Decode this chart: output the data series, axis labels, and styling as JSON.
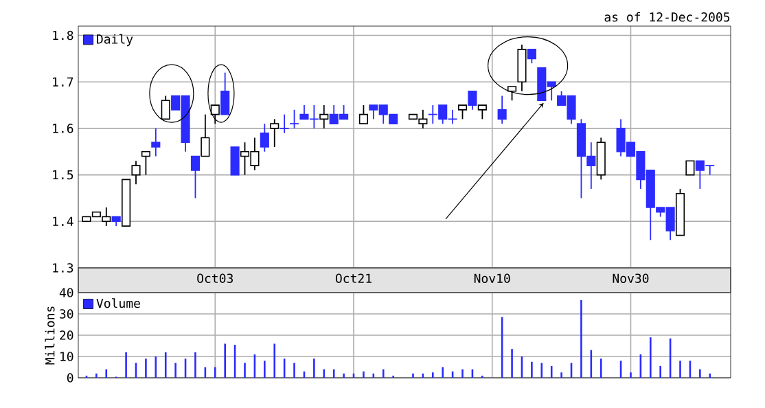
{
  "chart_data": [
    {
      "type": "candlestick",
      "subtitle": "as of 12-Dec-2005",
      "categories": [
        null,
        null,
        null,
        null,
        null,
        null,
        null,
        null,
        null,
        null,
        null,
        null,
        null,
        "Oct03",
        null,
        null,
        null,
        null,
        null,
        null,
        null,
        null,
        null,
        null,
        null,
        null,
        null,
        "Oct21",
        null,
        null,
        null,
        null,
        null,
        null,
        null,
        null,
        null,
        null,
        null,
        null,
        null,
        "Nov10",
        null,
        null,
        null,
        null,
        null,
        null,
        null,
        null,
        null,
        null,
        null,
        null,
        null,
        "Nov30",
        null,
        null,
        null,
        null,
        null,
        null,
        null,
        null
      ],
      "series": [
        {
          "name": "Daily",
          "color": "#2b2bff",
          "colors": [
            "#ffffff",
            "#ffffff",
            "#ffffff",
            "#2b2bff",
            "#ffffff",
            "#ffffff",
            "#ffffff",
            "#2b2bff",
            "#ffffff",
            "#2b2bff",
            "#2b2bff",
            "#2b2bff",
            "#ffffff",
            "#ffffff",
            "#2b2bff",
            "#2b2bff",
            "#ffffff",
            "#ffffff",
            "#2b2bff",
            "#ffffff",
            "#2b2bff",
            "#2b2bff",
            "#2b2bff",
            "#2b2bff",
            "#ffffff",
            "#2b2bff",
            "#2b2bff",
            null,
            "#ffffff",
            "#2b2bff",
            "#2b2bff",
            "#2b2bff",
            null,
            "#ffffff",
            "#ffffff",
            "#2b2bff",
            "#2b2bff",
            "#2b2bff",
            "#ffffff",
            "#2b2bff",
            "#ffffff",
            null,
            "#2b2bff",
            "#ffffff",
            "#ffffff",
            "#2b2bff",
            "#2b2bff",
            "#2b2bff",
            "#2b2bff",
            "#2b2bff",
            "#2b2bff",
            "#2b2bff",
            "#ffffff",
            null,
            "#2b2bff",
            "#2b2bff",
            "#2b2bff",
            "#2b2bff",
            "#2b2bff",
            "#2b2bff",
            "#ffffff",
            "#ffffff",
            "#2b2bff",
            "#2b2bff"
          ],
          "ohlc": [
            [
              1.4,
              1.41,
              1.4,
              1.41
            ],
            [
              1.41,
              1.42,
              1.41,
              1.42
            ],
            [
              1.4,
              1.43,
              1.39,
              1.41
            ],
            [
              1.41,
              1.41,
              1.39,
              1.4
            ],
            [
              1.39,
              1.49,
              1.39,
              1.49
            ],
            [
              1.5,
              1.53,
              1.48,
              1.52
            ],
            [
              1.54,
              1.55,
              1.5,
              1.55
            ],
            [
              1.57,
              1.6,
              1.54,
              1.56
            ],
            [
              1.62,
              1.67,
              1.62,
              1.66
            ],
            [
              1.67,
              1.67,
              1.64,
              1.64
            ],
            [
              1.67,
              1.67,
              1.55,
              1.57
            ],
            [
              1.54,
              1.54,
              1.45,
              1.51
            ],
            [
              1.54,
              1.63,
              1.54,
              1.58
            ],
            [
              1.63,
              1.65,
              1.61,
              1.65
            ],
            [
              1.68,
              1.72,
              1.63,
              1.63
            ],
            [
              1.56,
              1.56,
              1.5,
              1.5
            ],
            [
              1.54,
              1.57,
              1.5,
              1.55
            ],
            [
              1.52,
              1.58,
              1.51,
              1.55
            ],
            [
              1.59,
              1.61,
              1.55,
              1.56
            ],
            [
              1.6,
              1.62,
              1.56,
              1.61
            ],
            [
              1.6,
              1.63,
              1.59,
              1.6
            ],
            [
              1.61,
              1.64,
              1.6,
              1.61
            ],
            [
              1.63,
              1.65,
              1.62,
              1.62
            ],
            [
              1.62,
              1.65,
              1.6,
              1.62
            ],
            [
              1.62,
              1.65,
              1.6,
              1.63
            ],
            [
              1.63,
              1.65,
              1.61,
              1.61
            ],
            [
              1.63,
              1.65,
              1.62,
              1.62
            ],
            null,
            [
              1.61,
              1.65,
              1.61,
              1.63
            ],
            [
              1.65,
              1.65,
              1.62,
              1.64
            ],
            [
              1.65,
              1.65,
              1.61,
              1.63
            ],
            [
              1.63,
              1.63,
              1.61,
              1.61
            ],
            null,
            [
              1.62,
              1.63,
              1.62,
              1.63
            ],
            [
              1.61,
              1.64,
              1.6,
              1.62
            ],
            [
              1.63,
              1.65,
              1.61,
              1.63
            ],
            [
              1.65,
              1.65,
              1.61,
              1.62
            ],
            [
              1.62,
              1.64,
              1.61,
              1.62
            ],
            [
              1.64,
              1.65,
              1.62,
              1.65
            ],
            [
              1.68,
              1.68,
              1.64,
              1.65
            ],
            [
              1.64,
              1.65,
              1.62,
              1.65
            ],
            null,
            [
              1.64,
              1.67,
              1.61,
              1.62
            ],
            [
              1.68,
              1.69,
              1.66,
              1.69
            ],
            [
              1.7,
              1.78,
              1.68,
              1.77
            ],
            [
              1.77,
              1.77,
              1.74,
              1.75
            ],
            [
              1.73,
              1.73,
              1.66,
              1.66
            ],
            [
              1.7,
              1.7,
              1.66,
              1.69
            ],
            [
              1.67,
              1.68,
              1.65,
              1.65
            ],
            [
              1.67,
              1.67,
              1.61,
              1.62
            ],
            [
              1.61,
              1.62,
              1.45,
              1.54
            ],
            [
              1.54,
              1.57,
              1.47,
              1.52
            ],
            [
              1.5,
              1.58,
              1.49,
              1.57
            ],
            null,
            [
              1.6,
              1.62,
              1.54,
              1.55
            ],
            [
              1.57,
              1.57,
              1.54,
              1.54
            ],
            [
              1.55,
              1.55,
              1.47,
              1.49
            ],
            [
              1.51,
              1.51,
              1.36,
              1.43
            ],
            [
              1.43,
              1.43,
              1.41,
              1.42
            ],
            [
              1.43,
              1.43,
              1.36,
              1.38
            ],
            [
              1.37,
              1.47,
              1.37,
              1.46
            ],
            [
              1.5,
              1.53,
              1.5,
              1.53
            ],
            [
              1.53,
              1.53,
              1.47,
              1.51
            ],
            [
              1.52,
              1.52,
              1.5,
              1.52
            ]
          ]
        }
      ],
      "ylim": [
        1.3,
        1.82
      ],
      "yticks": [
        1.3,
        1.4,
        1.5,
        1.6,
        1.7,
        1.8
      ],
      "grid": true,
      "legend": "top left"
    },
    {
      "type": "bar",
      "ylabel": "Millions",
      "categories": [
        null,
        null,
        null,
        null,
        null,
        null,
        null,
        null,
        null,
        null,
        null,
        null,
        null,
        null,
        null,
        null,
        null,
        null,
        null,
        null,
        null,
        null,
        null,
        null,
        null,
        null,
        null,
        null,
        null,
        null,
        null,
        null,
        null,
        null,
        null,
        null,
        null,
        null,
        null,
        null,
        null,
        null,
        null,
        null,
        null,
        null,
        null,
        null,
        null,
        null,
        null,
        null,
        null,
        null,
        null,
        null,
        null,
        null,
        null,
        null,
        null,
        null,
        null,
        null
      ],
      "series": [
        {
          "name": "Volume",
          "color": "#2b2bff",
          "values": [
            1,
            2,
            4,
            0.5,
            12,
            7,
            9,
            10,
            12,
            7,
            9,
            12,
            5,
            5,
            16,
            15.5,
            7,
            11,
            8,
            16,
            9,
            7,
            3,
            9,
            4,
            4,
            2,
            2,
            3,
            2,
            4,
            1,
            null,
            2,
            2,
            2.5,
            5,
            3,
            4,
            4,
            1,
            null,
            28.5,
            13.5,
            10,
            7.5,
            7,
            5.5,
            2.5,
            7,
            36.5,
            13,
            9,
            null,
            8,
            2.5,
            11,
            19,
            5.5,
            18.5,
            8,
            8,
            4,
            2
          ]
        }
      ],
      "ylim": [
        0,
        40
      ],
      "yticks": [
        0,
        10,
        20,
        30,
        40
      ],
      "grid": true,
      "legend": "top left"
    }
  ]
}
